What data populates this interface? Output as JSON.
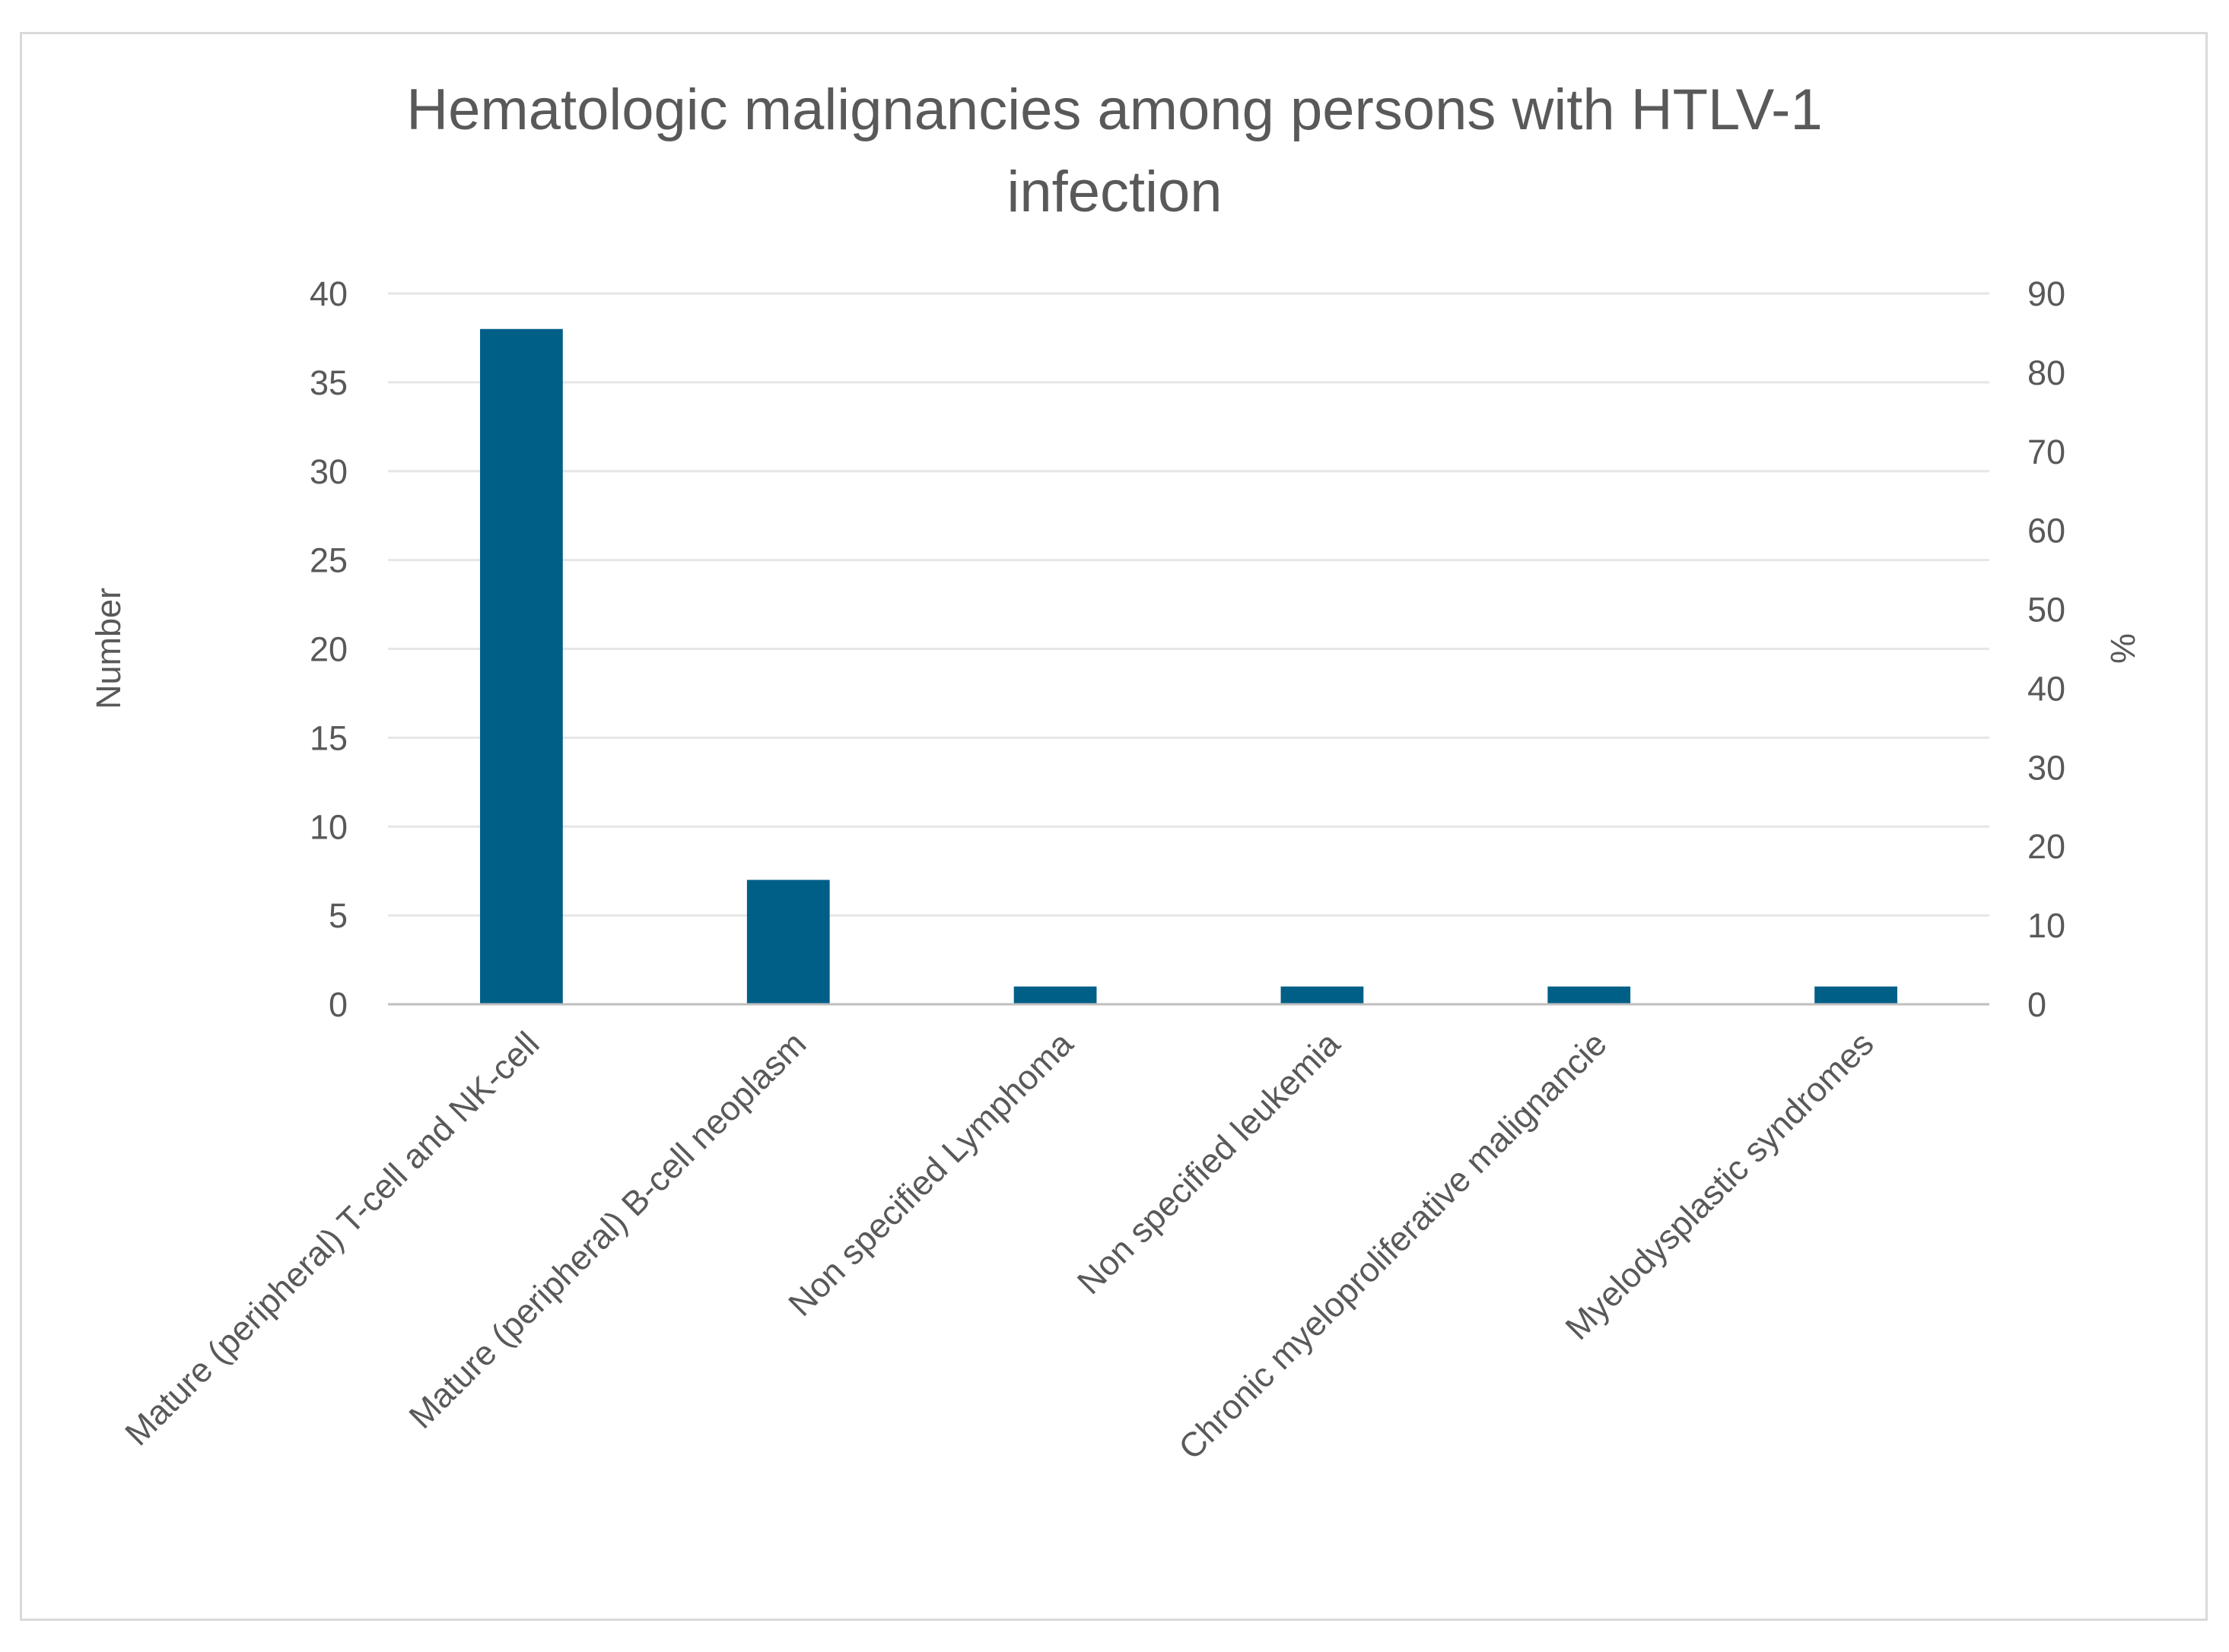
{
  "chart_data": {
    "type": "bar",
    "title_lines": [
      "Hematologic malignancies among persons with HTLV-1",
      "infection"
    ],
    "ylabel": "Number",
    "y2label": "%",
    "ylim": [
      0,
      40
    ],
    "y2lim": [
      0,
      90
    ],
    "yticks": [
      "0",
      "5",
      "10",
      "15",
      "20",
      "25",
      "30",
      "35",
      "40"
    ],
    "y2ticks": [
      "0",
      "10",
      "20",
      "30",
      "40",
      "50",
      "60",
      "70",
      "80",
      "90"
    ],
    "categories": [
      "Mature (peripheral) T-cell and NK-cell",
      "Mature (peripheral) B-cell neoplasm",
      "Non specified Lymphoma",
      "Non specified leukemia",
      "Chronic myeloproliferative malignancie",
      "Myelodysplastic syndromes"
    ],
    "values": [
      38,
      7,
      1,
      1,
      1,
      1
    ],
    "grid": true,
    "legend": "none",
    "colors": {
      "bar": "#005f87",
      "grid": "#e6e6e6",
      "axis": "#bfbfbf",
      "text": "#595959"
    }
  }
}
